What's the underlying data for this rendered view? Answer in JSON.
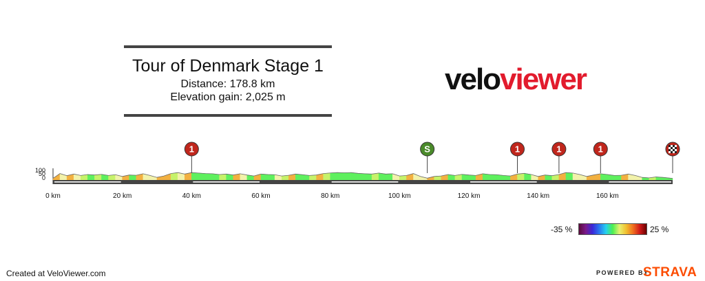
{
  "header": {
    "title": "Tour of Denmark Stage 1",
    "distance": "Distance: 178.8 km",
    "elevation": "Elevation gain: 2,025 m"
  },
  "logo": {
    "part1": "velo",
    "part2": "viewer"
  },
  "chart_data": {
    "type": "area",
    "xlabel": "",
    "ylabel": "",
    "xlim": [
      0,
      178.8
    ],
    "x_ticks": [
      "0 km",
      "20 km",
      "40 km",
      "60 km",
      "80 km",
      "100 km",
      "120 km",
      "140 km",
      "160 km"
    ],
    "y_ticks": [
      "100",
      "50",
      "0"
    ],
    "ylim": [
      0,
      100
    ],
    "series": [
      {
        "x": [
          0,
          2,
          4,
          6,
          8,
          10,
          12,
          14,
          16,
          18,
          20,
          22,
          24,
          26,
          28,
          30,
          32,
          34,
          36,
          38,
          40,
          42,
          44,
          46,
          48,
          50,
          52,
          54,
          56,
          58,
          60,
          62,
          64,
          66,
          68,
          70,
          72,
          74,
          76,
          78,
          80,
          82,
          84,
          86,
          88,
          90,
          92,
          94,
          96,
          98,
          100,
          102,
          104,
          106,
          108,
          110,
          112,
          114,
          116,
          118,
          120,
          122,
          124,
          126,
          128,
          130,
          132,
          134,
          136,
          138,
          140,
          142,
          144,
          146,
          148,
          150,
          152,
          154,
          156,
          158,
          160,
          162,
          164,
          166,
          168,
          170,
          172,
          174,
          176,
          178.8
        ],
        "y": [
          10,
          60,
          38,
          55,
          40,
          50,
          45,
          52,
          40,
          48,
          30,
          45,
          42,
          58,
          40,
          20,
          35,
          60,
          70,
          55,
          70,
          65,
          60,
          58,
          50,
          55,
          45,
          58,
          45,
          35,
          55,
          50,
          48,
          35,
          42,
          55,
          48,
          40,
          45,
          60,
          66,
          70,
          68,
          70,
          62,
          58,
          55,
          65,
          55,
          58,
          35,
          40,
          60,
          30,
          12,
          30,
          35,
          50,
          40,
          52,
          45,
          40,
          58,
          50,
          48,
          40,
          35,
          55,
          62,
          50,
          30,
          45,
          38,
          50,
          70,
          65,
          50,
          30,
          45,
          58,
          50,
          40,
          42,
          55,
          40,
          20,
          15,
          25,
          20,
          10
        ]
      }
    ],
    "markers": [
      {
        "km": 40,
        "label": "1",
        "type": "climb",
        "color": "#c0261c"
      },
      {
        "km": 108,
        "label": "S",
        "type": "sprint",
        "color": "#4a8a2a"
      },
      {
        "km": 134,
        "label": "1",
        "type": "climb",
        "color": "#c0261c"
      },
      {
        "km": 146,
        "label": "1",
        "type": "climb",
        "color": "#c0261c"
      },
      {
        "km": 158,
        "label": "1",
        "type": "climb",
        "color": "#c0261c"
      },
      {
        "km": 178.8,
        "label": "",
        "type": "finish",
        "color": "#c0261c"
      }
    ],
    "gradient_legend": {
      "min_label": "-35 %",
      "max_label": "25 %"
    },
    "colors": {
      "flat": "#5ef05e",
      "descent": "#f2f2aa",
      "climb": "#c6f26a",
      "steep": "#f2b040",
      "base": "#444444",
      "base_stripe": "#ffffff"
    },
    "grid": false
  },
  "footer": {
    "created": "Created at VeloViewer.com",
    "powered": "POWERED BY",
    "strava": "STRAVA"
  }
}
